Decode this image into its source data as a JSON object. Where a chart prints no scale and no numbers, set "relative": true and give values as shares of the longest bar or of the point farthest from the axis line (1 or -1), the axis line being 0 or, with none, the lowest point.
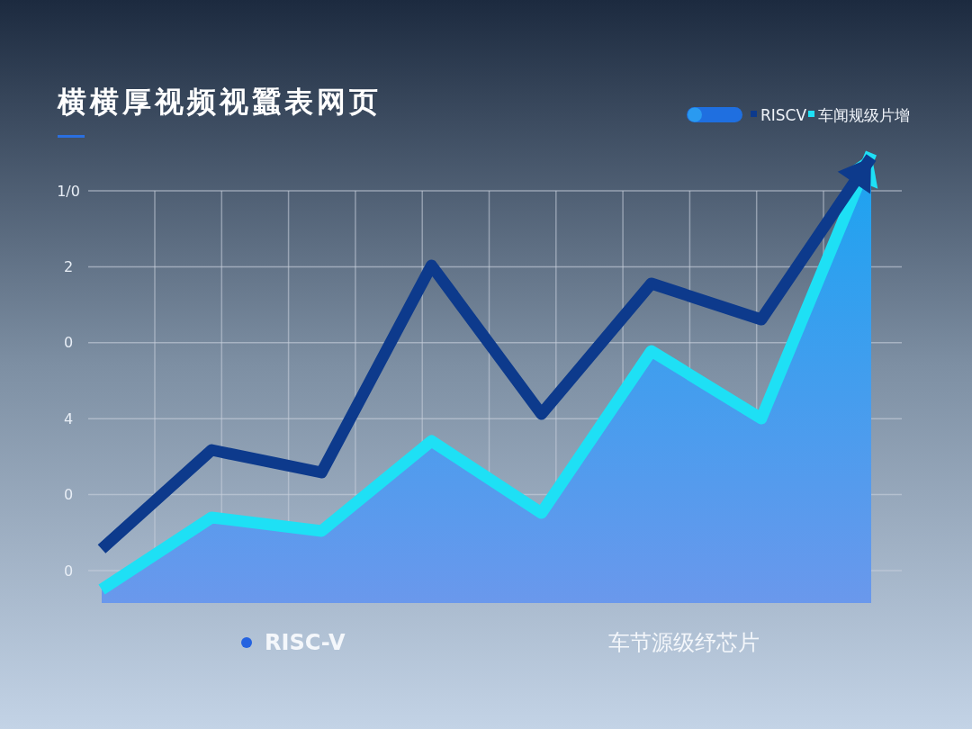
{
  "chart_data": {
    "type": "line",
    "title": "横横厚视频视蠶表网页",
    "relative": true,
    "categories": [
      null,
      null,
      null,
      null,
      null,
      null,
      null,
      null
    ],
    "grid": true,
    "legend": "top right",
    "series": [
      {
        "name": "RISCV",
        "type": "line",
        "color": "#0d3a8c",
        "values": [
          0.12,
          0.34,
          0.29,
          0.75,
          0.42,
          0.71,
          0.63,
          0.99
        ]
      },
      {
        "name": "车闻规级片增",
        "type": "area",
        "color": "#1ee0f5",
        "values": [
          0.03,
          0.19,
          0.16,
          0.36,
          0.2,
          0.56,
          0.41,
          1
        ]
      }
    ],
    "annotations": [
      "0",
      "0",
      "4",
      "0",
      "2",
      "1/0",
      "RISC-V",
      "车节源级纾芯片"
    ]
  }
}
